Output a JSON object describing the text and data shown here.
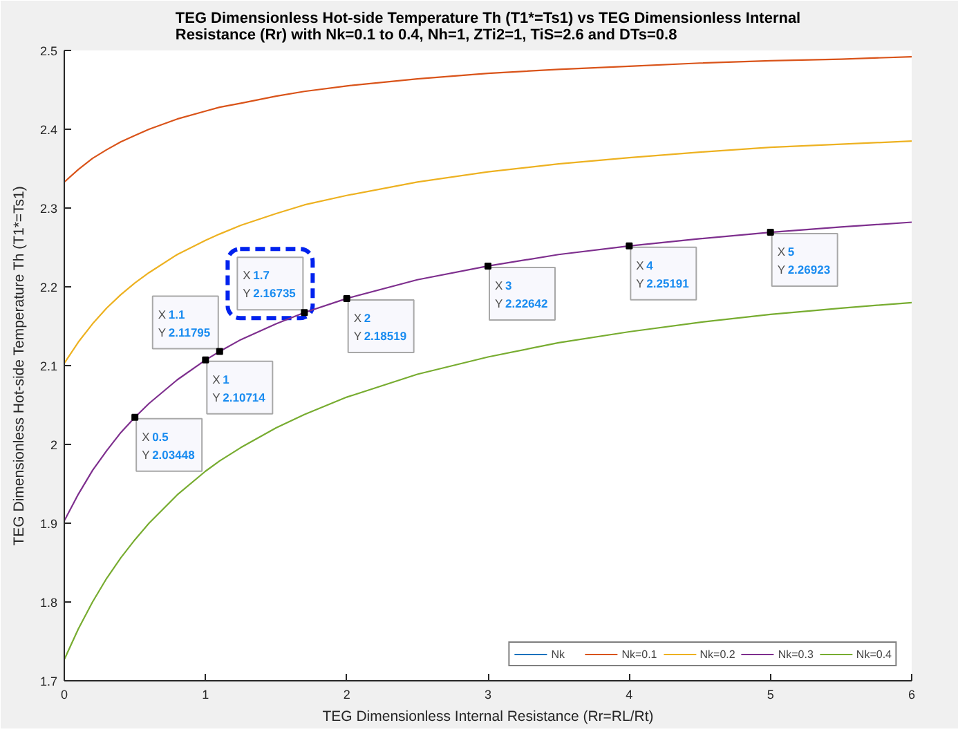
{
  "chart_data": {
    "type": "line",
    "title": "TEG Dimensionless Hot-side Temperature Th (T1*=Ts1) vs TEG Dimensionless Internal Resistance (Rr) with Nk=0.1 to 0.4, Nh=1, ZTi2=1, TiS=2.6 and DTs=0.8",
    "xlabel": "TEG Dimensionless Internal Resistance (Rr=RL/Rt)",
    "ylabel": "TEG Dimensionless Hot-side Temperature Th (T1*=Ts1)",
    "x": [
      0,
      0.1,
      0.2,
      0.3,
      0.4,
      0.5,
      0.6,
      0.8,
      1,
      1.1,
      1.25,
      1.5,
      1.7,
      2,
      2.5,
      3,
      3.5,
      4,
      4.5,
      5,
      5.5,
      6
    ],
    "series": [
      {
        "name": "Nk",
        "color": "#0072bd",
        "values": [
          null,
          null,
          null,
          null,
          null,
          null,
          null,
          null,
          null,
          null,
          null,
          null,
          null,
          null,
          null,
          null,
          null,
          null,
          null,
          null,
          null,
          null
        ]
      },
      {
        "name": "Nk=0.1",
        "color": "#d95319",
        "values": [
          2.333,
          2.349,
          2.363,
          2.374,
          2.384,
          2.392,
          2.4,
          2.413,
          2.423,
          2.428,
          2.433,
          2.442,
          2.448,
          2.455,
          2.464,
          2.471,
          2.476,
          2.48,
          2.484,
          2.487,
          2.489,
          2.492
        ]
      },
      {
        "name": "Nk=0.2",
        "color": "#edb120",
        "values": [
          2.103,
          2.13,
          2.153,
          2.173,
          2.19,
          2.205,
          2.218,
          2.241,
          2.259,
          2.267,
          2.278,
          2.293,
          2.304,
          2.316,
          2.333,
          2.346,
          2.356,
          2.364,
          2.371,
          2.377,
          2.381,
          2.385
        ]
      },
      {
        "name": "Nk=0.3",
        "color": "#7e2f8e",
        "values": [
          1.903,
          1.937,
          1.967,
          1.992,
          2.015,
          2.03448,
          2.052,
          2.082,
          2.10714,
          2.11795,
          2.133,
          2.153,
          2.16735,
          2.18519,
          2.209,
          2.22642,
          2.241,
          2.25191,
          2.261,
          2.26923,
          2.276,
          2.282
        ]
      },
      {
        "name": "Nk=0.4",
        "color": "#77ac30",
        "values": [
          1.727,
          1.766,
          1.8,
          1.83,
          1.856,
          1.879,
          1.9,
          1.936,
          1.966,
          1.979,
          1.996,
          2.021,
          2.038,
          2.06,
          2.089,
          2.111,
          2.129,
          2.143,
          2.155,
          2.165,
          2.173,
          2.18
        ]
      }
    ],
    "xlim": [
      0,
      6
    ],
    "ylim": [
      1.7,
      2.5
    ],
    "xticks": [
      0,
      1,
      2,
      3,
      4,
      5,
      6
    ],
    "yticks": [
      1.7,
      1.8,
      1.9,
      2,
      2.1,
      2.2,
      2.3,
      2.4,
      2.5
    ],
    "legend": "bottom right",
    "annotations": [
      {
        "text": "X 0.5\nY 2.03448",
        "x": 0.5,
        "y": 2.03448
      },
      {
        "text": "X 1\nY 2.10714",
        "x": 1,
        "y": 2.10714
      },
      {
        "text": "X 1.1\nY 2.11795",
        "x": 1.1,
        "y": 2.11795
      },
      {
        "text": "X 1.7\nY 2.16735",
        "x": 1.7,
        "y": 2.16735
      },
      {
        "text": "X 2\nY 2.18519",
        "x": 2,
        "y": 2.18519
      },
      {
        "text": "X 3\nY 2.22642",
        "x": 3,
        "y": 2.22642
      },
      {
        "text": "X 4\nY 2.25191",
        "x": 4,
        "y": 2.25191
      },
      {
        "text": "X 5\nY 2.26923",
        "x": 5,
        "y": 2.26923
      }
    ]
  }
}
